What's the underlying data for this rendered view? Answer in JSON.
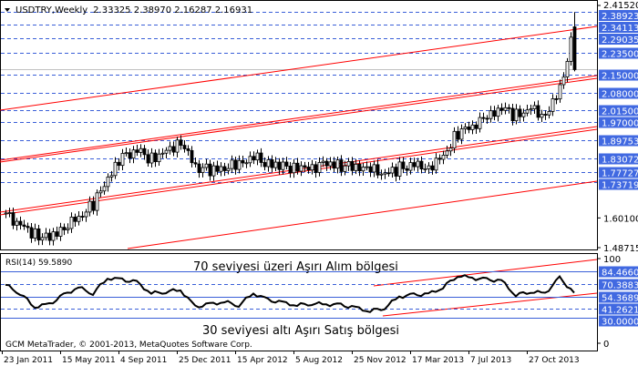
{
  "header": {
    "symbol": "USDTRY,Weekly",
    "ohlc": "2.33325 2.38970 2.16287 2.16931"
  },
  "rsi_header": "RSI(14) 59.5890",
  "annotations": {
    "overbought": "70 seviyesi üzeri Aşırı Alım bölgesi",
    "oversold": "30 seviyesi altı Aşırı Satış bölgesi"
  },
  "copyright": "GCM MetaTrader, © 2001-2013, MetaQuotes Software Corp.",
  "colors": {
    "level_line": "#3a5fd8",
    "label_bg": "#4169e1",
    "channel": "#ff0000",
    "price": "#000000"
  },
  "chart_data": [
    {
      "type": "candlestick",
      "title": "USDTRY,Weekly",
      "ylim": [
        1.48715,
        2.4152
      ],
      "y_ticks": [
        "2.41520",
        "1.60100",
        "1.48715"
      ],
      "current_price": "2.16931",
      "last_candle": {
        "open": 2.33325,
        "high": 2.3897,
        "low": 2.16287,
        "close": 2.16931
      },
      "approx_closes": [
        1.61,
        1.58,
        1.54,
        1.53,
        1.57,
        1.6,
        1.65,
        1.75,
        1.83,
        1.86,
        1.83,
        1.86,
        1.9,
        1.8,
        1.78,
        1.79,
        1.8,
        1.83,
        1.81,
        1.8,
        1.8,
        1.8,
        1.81,
        1.8,
        1.79,
        1.78,
        1.77,
        1.79,
        1.81,
        1.8,
        1.84,
        1.93,
        1.95,
        1.98,
        2.02,
        1.99,
        2.02,
        2.0,
        2.1,
        2.33
      ],
      "levels": [
        "2.38923",
        "2.34113",
        "2.29035",
        "2.23500",
        "2.15000",
        "2.08000",
        "2.01500",
        "1.97000",
        "1.89753",
        "1.83072",
        "1.77727",
        "1.73719"
      ],
      "x_ticks": [
        "23 Jan 2011",
        "15 May 2011",
        "4 Sep 2011",
        "25 Dec 2011",
        "15 Apr 2012",
        "5 Aug 2012",
        "25 Nov 2012",
        "17 Mar 2013",
        "7 Jul 2013",
        "27 Oct 2013"
      ]
    },
    {
      "type": "line",
      "title": "RSI(14) 59.5890",
      "ylim": [
        0,
        100
      ],
      "y_ticks": [
        "100",
        "0"
      ],
      "values": [
        69,
        59,
        43,
        46,
        57,
        66,
        59,
        77,
        75,
        72,
        59,
        61,
        63,
        43,
        46,
        49,
        45,
        59,
        51,
        48,
        45,
        47,
        46,
        45,
        42,
        38,
        42,
        55,
        57,
        58,
        66,
        80,
        77,
        75,
        74,
        57,
        61,
        59,
        77,
        59.589
      ],
      "levels": [
        "84.46602",
        "70.38835",
        "54.36893",
        "41.26214",
        "30.00000"
      ]
    }
  ]
}
